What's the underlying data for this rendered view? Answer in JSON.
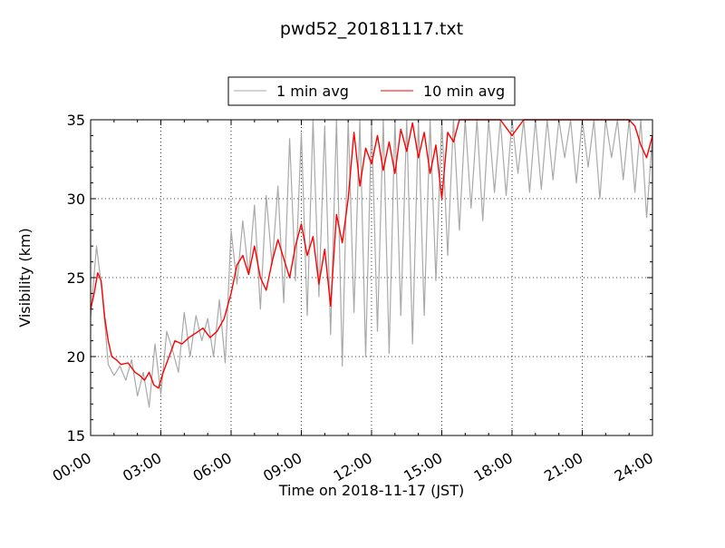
{
  "chart_data": {
    "type": "line",
    "title": "pwd52_20181117.txt",
    "xlabel": "Time on 2018-11-17 (JST)",
    "ylabel": "Visibility (km)",
    "xlim": [
      0,
      24
    ],
    "ylim": [
      15,
      35
    ],
    "x_unit": "hours",
    "xticks": [
      "00:00",
      "03:00",
      "06:00",
      "09:00",
      "12:00",
      "15:00",
      "18:00",
      "21:00",
      "24:00"
    ],
    "yticks": [
      "15",
      "20",
      "25",
      "30",
      "35"
    ],
    "grid": true,
    "legend_position": "top-center",
    "series": [
      {
        "name": "1 min avg",
        "color": "#a9a9a9",
        "x": [
          0.0,
          0.25,
          0.5,
          0.75,
          1.0,
          1.25,
          1.5,
          1.75,
          2.0,
          2.25,
          2.5,
          2.75,
          3.0,
          3.25,
          3.5,
          3.75,
          4.0,
          4.25,
          4.5,
          4.75,
          5.0,
          5.25,
          5.5,
          5.75,
          6.0,
          6.25,
          6.5,
          6.75,
          7.0,
          7.25,
          7.5,
          7.75,
          8.0,
          8.25,
          8.5,
          8.75,
          9.0,
          9.25,
          9.5,
          9.75,
          10.0,
          10.25,
          10.5,
          10.75,
          11.0,
          11.25,
          11.5,
          11.75,
          12.0,
          12.25,
          12.5,
          12.75,
          13.0,
          13.25,
          13.5,
          13.75,
          14.0,
          14.25,
          14.5,
          14.75,
          15.0,
          15.25,
          15.5,
          15.75,
          16.0,
          16.25,
          16.5,
          16.75,
          17.0,
          17.25,
          17.5,
          17.75,
          18.0,
          18.25,
          18.5,
          18.75,
          19.0,
          19.25,
          19.5,
          19.75,
          20.0,
          20.25,
          20.5,
          20.75,
          21.0,
          21.25,
          21.5,
          21.75,
          22.0,
          22.25,
          22.5,
          22.75,
          23.0,
          23.25,
          23.5,
          23.75,
          24.0
        ],
        "y": [
          22.5,
          27.0,
          24.0,
          19.5,
          18.8,
          19.4,
          18.5,
          19.8,
          17.5,
          19.0,
          16.8,
          20.8,
          17.6,
          21.6,
          20.4,
          19.0,
          22.8,
          20.0,
          22.6,
          21.0,
          22.4,
          20.0,
          23.6,
          19.6,
          28.0,
          24.6,
          28.6,
          25.2,
          29.6,
          23.0,
          30.2,
          25.8,
          30.8,
          23.4,
          33.8,
          24.8,
          34.2,
          22.6,
          35.0,
          23.8,
          34.6,
          21.4,
          35.0,
          19.4,
          35.0,
          22.8,
          35.0,
          20.0,
          35.0,
          21.6,
          35.0,
          20.2,
          35.0,
          22.6,
          35.0,
          20.8,
          35.0,
          22.6,
          35.0,
          24.8,
          35.0,
          26.4,
          35.0,
          28.0,
          35.0,
          29.4,
          35.0,
          28.6,
          35.0,
          30.4,
          35.0,
          30.2,
          35.0,
          31.6,
          35.0,
          30.4,
          35.0,
          30.6,
          35.0,
          31.2,
          35.0,
          32.6,
          35.0,
          31.0,
          35.0,
          32.0,
          35.0,
          30.0,
          35.0,
          32.6,
          35.0,
          31.2,
          35.0,
          30.4,
          35.0,
          28.8,
          34.0
        ]
      },
      {
        "name": "10 min avg",
        "color": "#ff0000",
        "x": [
          0.0,
          0.15,
          0.3,
          0.45,
          0.6,
          0.75,
          0.9,
          1.1,
          1.3,
          1.6,
          1.9,
          2.1,
          2.3,
          2.5,
          2.7,
          2.9,
          3.1,
          3.3,
          3.6,
          3.9,
          4.2,
          4.5,
          4.8,
          5.1,
          5.4,
          5.7,
          6.0,
          6.25,
          6.5,
          6.75,
          7.0,
          7.25,
          7.5,
          7.75,
          8.0,
          8.25,
          8.5,
          8.75,
          9.0,
          9.25,
          9.5,
          9.75,
          10.0,
          10.25,
          10.5,
          10.75,
          11.0,
          11.25,
          11.5,
          11.75,
          12.0,
          12.25,
          12.5,
          12.75,
          13.0,
          13.25,
          13.5,
          13.75,
          14.0,
          14.25,
          14.5,
          14.75,
          15.0,
          15.25,
          15.5,
          15.75,
          16.0,
          16.5,
          17.0,
          17.5,
          18.0,
          18.5,
          19.0,
          19.5,
          20.0,
          20.5,
          21.0,
          21.5,
          22.0,
          22.5,
          23.0,
          23.25,
          23.5,
          23.75,
          24.0
        ],
        "y": [
          23.0,
          24.0,
          25.3,
          24.8,
          22.5,
          21.0,
          20.0,
          19.8,
          19.5,
          19.6,
          19.0,
          18.8,
          18.5,
          19.0,
          18.2,
          18.0,
          19.0,
          19.8,
          21.0,
          20.8,
          21.2,
          21.5,
          21.8,
          21.2,
          21.6,
          22.4,
          24.0,
          25.8,
          26.4,
          25.2,
          27.0,
          25.0,
          24.2,
          26.0,
          27.4,
          26.2,
          25.0,
          27.0,
          28.4,
          26.4,
          27.6,
          24.6,
          26.8,
          23.2,
          29.0,
          27.2,
          30.0,
          34.2,
          30.8,
          33.2,
          32.2,
          34.0,
          31.8,
          33.6,
          31.6,
          34.4,
          33.0,
          34.8,
          32.6,
          34.2,
          31.6,
          33.4,
          30.0,
          34.2,
          33.6,
          35.0,
          35.0,
          35.0,
          35.0,
          35.0,
          34.0,
          35.0,
          35.0,
          35.0,
          35.0,
          35.0,
          35.0,
          35.0,
          35.0,
          35.0,
          35.0,
          34.6,
          33.4,
          32.6,
          34.0
        ]
      }
    ]
  }
}
